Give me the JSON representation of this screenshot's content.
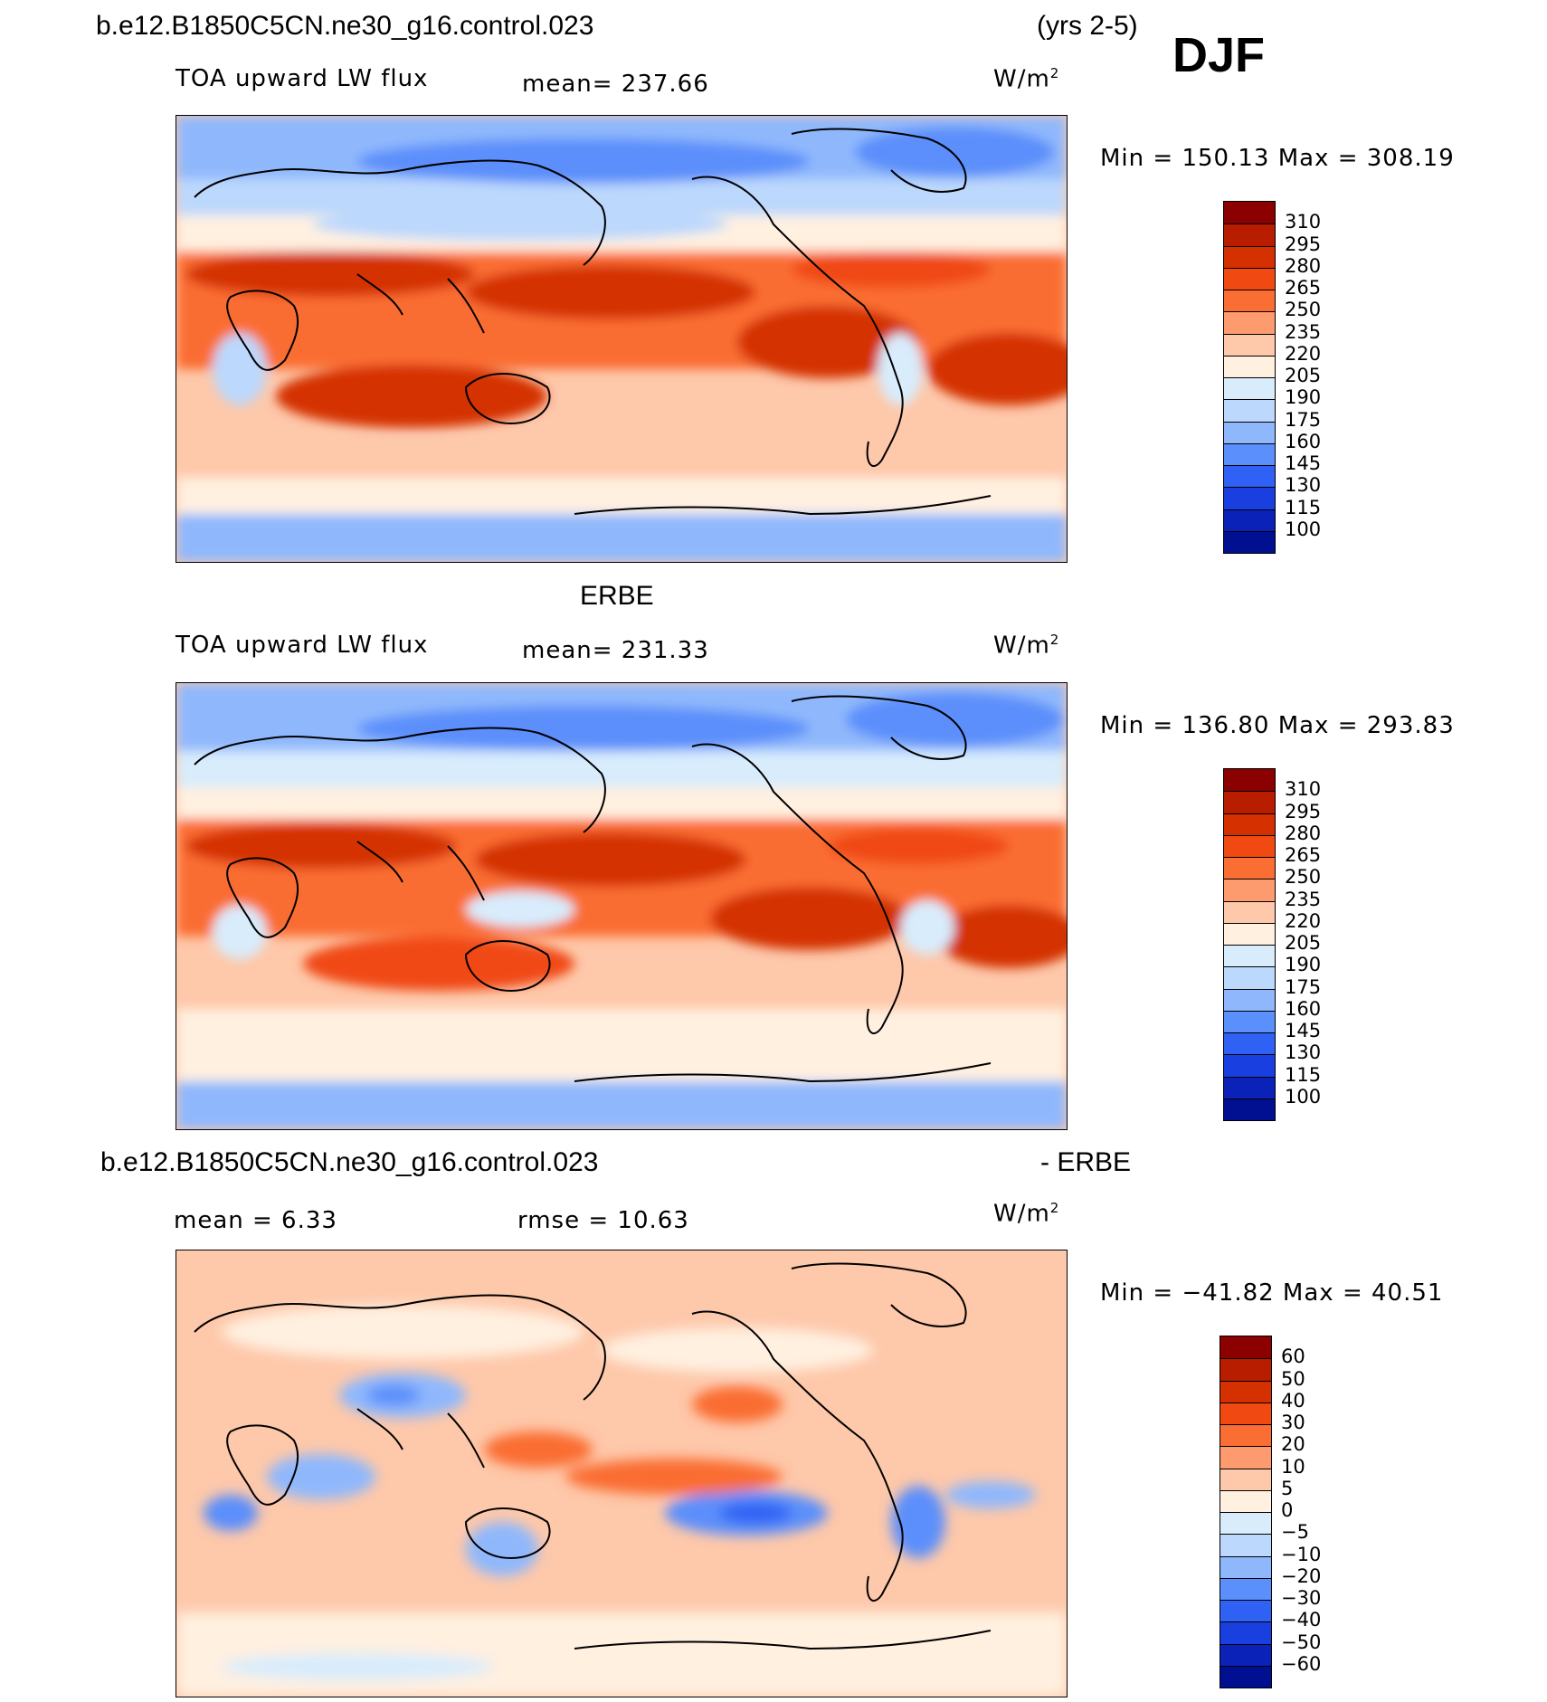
{
  "header": {
    "case_name": "b.e12.B1850C5CN.ne30_g16.control.023",
    "years": "(yrs 2-5)",
    "season": "DJF"
  },
  "panels": [
    {
      "title": "",
      "variable": "TOA upward LW flux",
      "stat": "mean= 237.66",
      "units_base": "W/m",
      "units_sup": "2",
      "minmax": "Min = 150.13 Max = 308.19",
      "colorbar": {
        "labels": [
          "310",
          "295",
          "280",
          "265",
          "250",
          "235",
          "220",
          "205",
          "190",
          "175",
          "160",
          "145",
          "130",
          "115",
          "100"
        ],
        "colors": [
          "#8b0000",
          "#b81d00",
          "#d43000",
          "#f04a12",
          "#fa6d33",
          "#fd9b6e",
          "#fec8aa",
          "#fff0e0",
          "#d8ecfc",
          "#bcd8fc",
          "#8fb8fc",
          "#5b8ffb",
          "#2f62f4",
          "#1a3fe0",
          "#0a22b8",
          "#001090"
        ]
      }
    },
    {
      "title": "ERBE",
      "variable": "TOA upward LW flux",
      "stat": "mean= 231.33",
      "units_base": "W/m",
      "units_sup": "2",
      "minmax": "Min = 136.80 Max = 293.83",
      "colorbar": {
        "labels": [
          "310",
          "295",
          "280",
          "265",
          "250",
          "235",
          "220",
          "205",
          "190",
          "175",
          "160",
          "145",
          "130",
          "115",
          "100"
        ],
        "colors": [
          "#8b0000",
          "#b81d00",
          "#d43000",
          "#f04a12",
          "#fa6d33",
          "#fd9b6e",
          "#fec8aa",
          "#fff0e0",
          "#d8ecfc",
          "#bcd8fc",
          "#8fb8fc",
          "#5b8ffb",
          "#2f62f4",
          "#1a3fe0",
          "#0a22b8",
          "#001090"
        ]
      }
    },
    {
      "title_left": "b.e12.B1850C5CN.ne30_g16.control.023",
      "title_right": "- ERBE",
      "stat_mean": "mean =    6.33",
      "stat_rmse": "rmse =   10.63",
      "units_base": "W/m",
      "units_sup": "2",
      "minmax": "Min = −41.82 Max =   40.51",
      "colorbar": {
        "labels": [
          "60",
          "50",
          "40",
          "30",
          "20",
          "10",
          "5",
          "0",
          "−5",
          "−10",
          "−20",
          "−30",
          "−40",
          "−50",
          "−60"
        ],
        "colors": [
          "#8b0000",
          "#b81d00",
          "#d43000",
          "#f04a12",
          "#fa6d33",
          "#fd9b6e",
          "#fec8aa",
          "#fff0e0",
          "#d8ecfc",
          "#bcd8fc",
          "#8fb8fc",
          "#5b8ffb",
          "#2f62f4",
          "#1a3fe0",
          "#0a22b8",
          "#001090"
        ]
      }
    }
  ]
}
